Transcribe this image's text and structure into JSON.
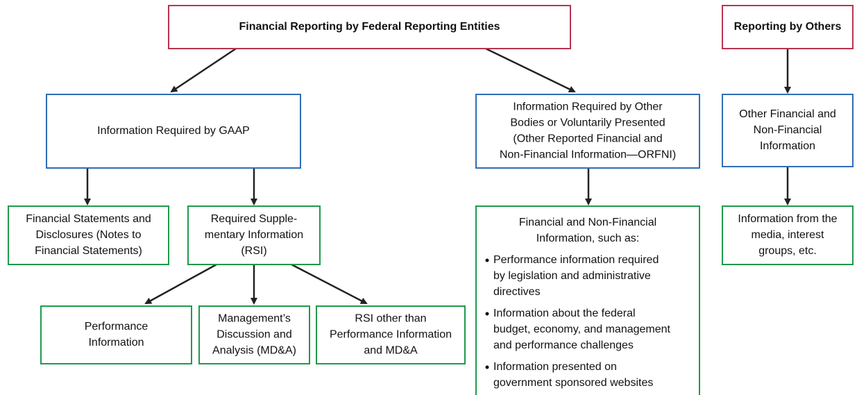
{
  "nodes": [
    {
      "lines": [
        "Financial Reporting by Federal Reporting Entities"
      ]
    },
    {
      "lines": [
        "Reporting by Others"
      ]
    },
    {
      "lines": [
        "Information Required by GAAP"
      ]
    },
    {
      "lines": [
        "Information Required by Other",
        "Bodies or Voluntarily Presented",
        "(Other Reported Financial and",
        "Non-Financial Information—ORFNI)"
      ]
    },
    {
      "lines": [
        "Other Financial and",
        "Non-Financial",
        "Information"
      ]
    },
    {
      "lines": [
        "Financial Statements and",
        "Disclosures (Notes to",
        "Financial Statements)"
      ]
    },
    {
      "lines": [
        "Required Supple-",
        "mentary Information",
        "(RSI)"
      ]
    },
    {
      "lines": [
        "Financial and Non-Financial",
        "Information, such as:"
      ],
      "bullets": [
        [
          "Performance information  required",
          "by legislation and administrative",
          "directives"
        ],
        [
          "Information about the federal",
          "budget, economy, and management",
          "and performance challenges"
        ],
        [
          "Information presented on",
          "government sponsored websites"
        ]
      ]
    },
    {
      "lines": [
        "Information from the",
        "media, interest",
        "groups, etc."
      ]
    },
    {
      "lines": [
        "Performance",
        "Information"
      ]
    },
    {
      "lines": [
        "Management’s",
        "Discussion and",
        "Analysis (MD&A)"
      ]
    },
    {
      "lines": [
        "RSI other than",
        "Performance Information",
        "and MD&A"
      ]
    }
  ]
}
